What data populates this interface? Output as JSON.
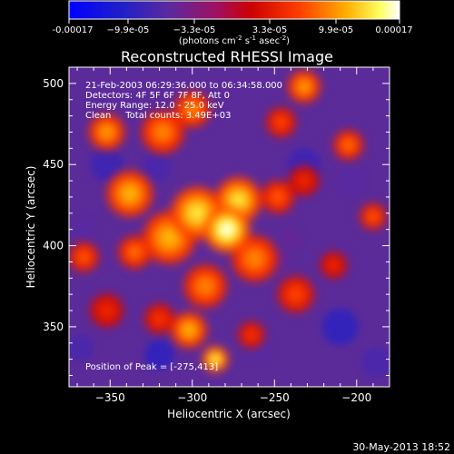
{
  "colorbar": {
    "tick_labels": [
      "-0.00017",
      "−9.9e-05",
      "−3.3e-05",
      "3.3e-05",
      "9.9e-05",
      "0.00017"
    ],
    "unit_parts": [
      "(photons cm",
      "-2",
      " s",
      "-1",
      " asec",
      "-2",
      ")"
    ],
    "range": [
      -0.00017,
      0.00017
    ]
  },
  "chart_data": {
    "type": "heatmap",
    "title": "Reconstructed RHESSI Image",
    "xlabel": "Heliocentric X (arcsec)",
    "ylabel": "Heliocentric Y (arcsec)",
    "xlim": [
      -375,
      -180
    ],
    "ylim": [
      313,
      510
    ],
    "x_ticks": [
      -350,
      -300,
      -250,
      -200
    ],
    "x_tick_labels": [
      "−350",
      "−300",
      "−250",
      "−200"
    ],
    "y_ticks": [
      350,
      400,
      450,
      500
    ],
    "y_tick_labels": [
      "350",
      "400",
      "450",
      "500"
    ],
    "annotations": [
      "21-Feb-2003 06:29:36.000 to 06:34:58.000",
      "Detectors: 4F 5F 6F 7F 8F, Att 0",
      "Energy Range: 12.0 - 25.0 keV",
      "Clean     Total counts: 3.49E+03"
    ],
    "peak_label": "Position of Peak = [-275,413]",
    "peak": [
      -275,
      413
    ],
    "colormap": "RHESSI blue-purple-red-yellow-white",
    "bright_regions": [
      {
        "x": -279,
        "y": 410,
        "r": 14,
        "intensity": 0.00017
      },
      {
        "x": -297,
        "y": 420,
        "r": 16,
        "intensity": 0.00014
      },
      {
        "x": -272,
        "y": 428,
        "r": 14,
        "intensity": 0.00014
      },
      {
        "x": -314,
        "y": 405,
        "r": 16,
        "intensity": 0.00012
      },
      {
        "x": -338,
        "y": 432,
        "r": 14,
        "intensity": 0.00012
      },
      {
        "x": -352,
        "y": 470,
        "r": 11,
        "intensity": 0.00011
      },
      {
        "x": -318,
        "y": 470,
        "r": 13,
        "intensity": 0.0001
      },
      {
        "x": -300,
        "y": 484,
        "r": 11,
        "intensity": 0.0001
      },
      {
        "x": -262,
        "y": 392,
        "r": 14,
        "intensity": 0.0001
      },
      {
        "x": -292,
        "y": 375,
        "r": 13,
        "intensity": 0.0001
      },
      {
        "x": -302,
        "y": 348,
        "r": 11,
        "intensity": 0.00012
      },
      {
        "x": -286,
        "y": 330,
        "r": 8,
        "intensity": 0.00015
      },
      {
        "x": -248,
        "y": 430,
        "r": 10,
        "intensity": 8e-05
      },
      {
        "x": -335,
        "y": 396,
        "r": 10,
        "intensity": 9e-05
      },
      {
        "x": -366,
        "y": 393,
        "r": 9,
        "intensity": 8e-05
      },
      {
        "x": -237,
        "y": 370,
        "r": 11,
        "intensity": 7e-05
      },
      {
        "x": -232,
        "y": 498,
        "r": 10,
        "intensity": 0.00011
      },
      {
        "x": -246,
        "y": 476,
        "r": 9,
        "intensity": 7e-05
      },
      {
        "x": -205,
        "y": 462,
        "r": 9,
        "intensity": 9e-05
      },
      {
        "x": -190,
        "y": 418,
        "r": 8,
        "intensity": 8e-05
      },
      {
        "x": -320,
        "y": 355,
        "r": 9,
        "intensity": 6e-05
      },
      {
        "x": -264,
        "y": 345,
        "r": 8,
        "intensity": 6e-05
      },
      {
        "x": -352,
        "y": 360,
        "r": 10,
        "intensity": 5e-05
      },
      {
        "x": -232,
        "y": 440,
        "r": 9,
        "intensity": 5e-05
      },
      {
        "x": -214,
        "y": 388,
        "r": 8,
        "intensity": 5e-05
      }
    ],
    "dark_regions": [
      {
        "x": -352,
        "y": 450,
        "r": 10,
        "intensity": -9e-05
      },
      {
        "x": -322,
        "y": 448,
        "r": 9,
        "intensity": -8e-05
      },
      {
        "x": -232,
        "y": 450,
        "r": 10,
        "intensity": -9e-05
      },
      {
        "x": -210,
        "y": 350,
        "r": 11,
        "intensity": -0.0001
      },
      {
        "x": -320,
        "y": 333,
        "r": 9,
        "intensity": -0.0001
      },
      {
        "x": -260,
        "y": 338,
        "r": 8,
        "intensity": -7e-05
      },
      {
        "x": -368,
        "y": 337,
        "r": 8,
        "intensity": -8e-05
      },
      {
        "x": -366,
        "y": 410,
        "r": 7,
        "intensity": -7e-05
      },
      {
        "x": -203,
        "y": 440,
        "r": 8,
        "intensity": -7e-05
      },
      {
        "x": -188,
        "y": 328,
        "r": 9,
        "intensity": -8e-05
      },
      {
        "x": -248,
        "y": 390,
        "r": 7,
        "intensity": -6e-05
      },
      {
        "x": -240,
        "y": 405,
        "r": 6,
        "intensity": -6e-05
      }
    ]
  },
  "footer": {
    "timestamp": "30-May-2013 18:52"
  }
}
